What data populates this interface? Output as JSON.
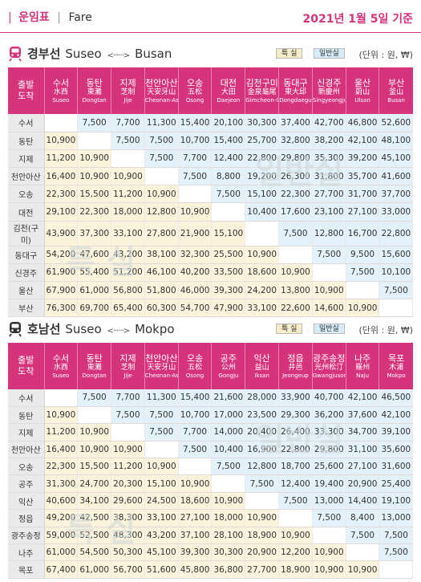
{
  "header": {
    "bar": "|",
    "title_ko": "운임표",
    "sep": "|",
    "title_en": "Fare",
    "date": "2021년 1월 5일 기준"
  },
  "legend": {
    "special": "특 실",
    "general": "일반실"
  },
  "colors": {
    "accent": "#d6337d",
    "special_cell": "#fbf3dc",
    "general_cell": "#e3f1fa",
    "label_cell": "#eaeaea"
  },
  "sections": [
    {
      "name_ko": "경부선",
      "from": "Suseo",
      "arrow": "<······>",
      "to": "Busan",
      "unit": "(단위 : 원, ₩)",
      "watermark_special": "특 실",
      "watermark_general": "일반실",
      "corner": [
        "출발",
        "도착"
      ],
      "stations": [
        {
          "k": "수서",
          "h": "水西",
          "e": "Suseo"
        },
        {
          "k": "동탄",
          "h": "東灘",
          "e": "Dongtan"
        },
        {
          "k": "지제",
          "h": "芝制",
          "e": "Jije"
        },
        {
          "k": "천안아산",
          "h": "天安牙山",
          "e": "Cheonan-Asan"
        },
        {
          "k": "오송",
          "h": "五松",
          "e": "Osong"
        },
        {
          "k": "대전",
          "h": "大田",
          "e": "Daejeon"
        },
        {
          "k": "김천구미",
          "h": "金泉龜尾",
          "e": "Gimcheon-Gumi"
        },
        {
          "k": "동대구",
          "h": "東大邱",
          "e": "Dongdaegu"
        },
        {
          "k": "신경주",
          "h": "新慶州",
          "e": "Singyeongju"
        },
        {
          "k": "울산",
          "h": "蔚山",
          "e": "Ulsan"
        },
        {
          "k": "부산",
          "h": "釜山",
          "e": "Busan"
        }
      ],
      "rows": [
        {
          "label": "수서",
          "values": [
            "",
            "7,500",
            "7,700",
            "11,300",
            "15,400",
            "20,100",
            "30,300",
            "37,400",
            "42,700",
            "46,800",
            "52,600"
          ]
        },
        {
          "label": "동탄",
          "values": [
            "10,900",
            "",
            "7,500",
            "7,500",
            "10,700",
            "15,400",
            "25,700",
            "32,800",
            "38,200",
            "42,100",
            "48,100"
          ]
        },
        {
          "label": "지제",
          "values": [
            "11,200",
            "10,900",
            "",
            "7,500",
            "7,700",
            "12,400",
            "22,800",
            "29,800",
            "35,300",
            "39,200",
            "45,100"
          ]
        },
        {
          "label": "천안아산",
          "values": [
            "16,400",
            "10,900",
            "10,900",
            "",
            "7,500",
            "8,800",
            "19,200",
            "26,300",
            "31,800",
            "35,700",
            "41,600"
          ]
        },
        {
          "label": "오송",
          "values": [
            "22,300",
            "15,500",
            "11,200",
            "10,900",
            "",
            "7,500",
            "15,100",
            "22,300",
            "27,700",
            "31,700",
            "37,700"
          ]
        },
        {
          "label": "대전",
          "values": [
            "29,100",
            "22,300",
            "18,000",
            "12,800",
            "10,900",
            "",
            "10,400",
            "17,600",
            "23,100",
            "27,100",
            "33,000"
          ]
        },
        {
          "label": "김천(구미)",
          "values": [
            "43,900",
            "37,300",
            "33,100",
            "27,800",
            "21,900",
            "15,100",
            "",
            "7,500",
            "12,800",
            "16,700",
            "22,800"
          ]
        },
        {
          "label": "동대구",
          "values": [
            "54,200",
            "47,600",
            "43,200",
            "38,100",
            "32,300",
            "25,500",
            "10,900",
            "",
            "7,500",
            "9,500",
            "15,600"
          ]
        },
        {
          "label": "신경주",
          "values": [
            "61,900",
            "55,400",
            "51,200",
            "46,100",
            "40,200",
            "33,500",
            "18,600",
            "10,900",
            "",
            "7,500",
            "10,100"
          ]
        },
        {
          "label": "울산",
          "values": [
            "67,900",
            "61,000",
            "56,800",
            "51,800",
            "46,000",
            "39,300",
            "24,200",
            "13,800",
            "10,900",
            "",
            "7,500"
          ]
        },
        {
          "label": "부산",
          "values": [
            "76,300",
            "69,700",
            "65,400",
            "60,300",
            "54,700",
            "47,900",
            "33,100",
            "22,600",
            "14,600",
            "10,900",
            ""
          ]
        }
      ]
    },
    {
      "name_ko": "호남선",
      "from": "Suseo",
      "arrow": "<······>",
      "to": "Mokpo",
      "unit": "(단위 : 원, ₩)",
      "watermark_special": "특 실",
      "watermark_general": "일반실",
      "corner": [
        "출발",
        "도착"
      ],
      "stations": [
        {
          "k": "수서",
          "h": "水西",
          "e": "Suseo"
        },
        {
          "k": "동탄",
          "h": "東灘",
          "e": "Dongtan"
        },
        {
          "k": "지제",
          "h": "芝制",
          "e": "Jije"
        },
        {
          "k": "천안아산",
          "h": "天安牙山",
          "e": "Cheonan-Asan"
        },
        {
          "k": "오송",
          "h": "五松",
          "e": "Osong"
        },
        {
          "k": "공주",
          "h": "公州",
          "e": "Gongju"
        },
        {
          "k": "익산",
          "h": "益山",
          "e": "Iksan"
        },
        {
          "k": "정읍",
          "h": "井邑",
          "e": "Jeongeup"
        },
        {
          "k": "광주송정",
          "h": "光州松汀",
          "e": "Gwangjusongjeong"
        },
        {
          "k": "나주",
          "h": "羅州",
          "e": "Naju"
        },
        {
          "k": "목포",
          "h": "木浦",
          "e": "Mokpo"
        }
      ],
      "rows": [
        {
          "label": "수서",
          "values": [
            "",
            "7,500",
            "7,700",
            "11,300",
            "15,400",
            "21,600",
            "28,000",
            "33,900",
            "40,700",
            "42,100",
            "46,500"
          ]
        },
        {
          "label": "동탄",
          "values": [
            "10,900",
            "",
            "7,500",
            "7,500",
            "10,700",
            "17,000",
            "23,500",
            "29,300",
            "36,200",
            "37,600",
            "42,100"
          ]
        },
        {
          "label": "지제",
          "values": [
            "11,200",
            "10,900",
            "",
            "7,500",
            "7,700",
            "14,000",
            "20,400",
            "26,400",
            "33,300",
            "34,700",
            "39,100"
          ]
        },
        {
          "label": "천안아산",
          "values": [
            "16,400",
            "10,900",
            "10,900",
            "",
            "7,500",
            "10,400",
            "16,900",
            "22,800",
            "29,800",
            "31,100",
            "35,600"
          ]
        },
        {
          "label": "오송",
          "values": [
            "22,300",
            "15,500",
            "11,200",
            "10,900",
            "",
            "7,500",
            "12,800",
            "18,700",
            "25,600",
            "27,100",
            "31,600"
          ]
        },
        {
          "label": "공주",
          "values": [
            "31,300",
            "24,700",
            "20,300",
            "15,100",
            "10,900",
            "",
            "7,500",
            "12,400",
            "19,400",
            "20,900",
            "25,400"
          ]
        },
        {
          "label": "익산",
          "values": [
            "40,600",
            "34,100",
            "29,600",
            "24,500",
            "18,600",
            "10,900",
            "",
            "7,500",
            "13,000",
            "14,400",
            "19,100"
          ]
        },
        {
          "label": "정읍",
          "values": [
            "49,200",
            "42,500",
            "38,300",
            "33,100",
            "27,100",
            "18,000",
            "10,900",
            "",
            "7,500",
            "8,400",
            "13,000"
          ]
        },
        {
          "label": "광주송정",
          "values": [
            "59,000",
            "52,500",
            "48,300",
            "43,200",
            "37,100",
            "28,100",
            "18,900",
            "10,900",
            "",
            "7,500",
            "7,500"
          ]
        },
        {
          "label": "나주",
          "values": [
            "61,000",
            "54,500",
            "50,300",
            "45,100",
            "39,300",
            "30,300",
            "20,900",
            "12,200",
            "10,900",
            "",
            "7,500"
          ]
        },
        {
          "label": "목포",
          "values": [
            "67,400",
            "61,000",
            "56,700",
            "51,600",
            "45,800",
            "36,800",
            "27,700",
            "18,900",
            "10,900",
            "10,900",
            ""
          ]
        }
      ]
    }
  ]
}
